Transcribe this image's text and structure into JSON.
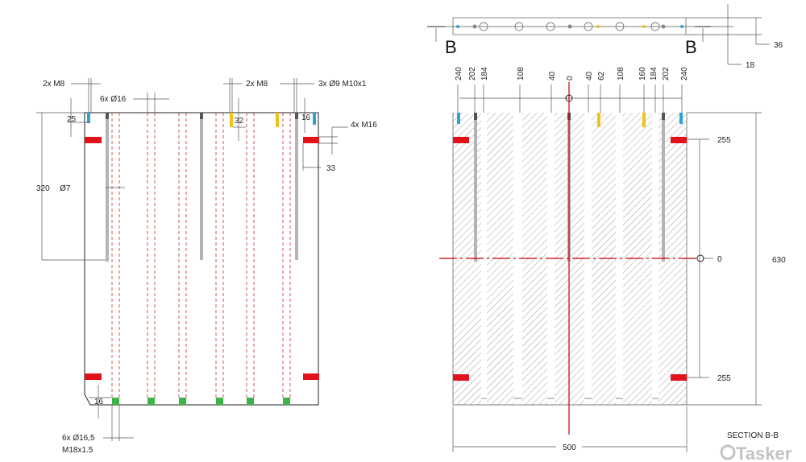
{
  "front_view": {
    "callouts": {
      "m8_left": "2x  M8",
      "bore16": "6x  Ø16",
      "m8_mid": "2x  M8",
      "m10": "3x  Ø9  M10x1",
      "m16": "4x  M16",
      "dim_25": "25",
      "dim_32": "32",
      "dim_16_top": "16",
      "dim_33": "33",
      "dim_320": "320",
      "dia7": "Ø7",
      "dim_16_bottom": "16",
      "bore165": "6x  Ø16,5",
      "thread18": "M18x1.5"
    }
  },
  "top_view": {
    "section_mark_left": "B",
    "section_mark_right": "B",
    "dim_36": "36",
    "dim_18": "18"
  },
  "section_view": {
    "top_dims": [
      "240",
      "202",
      "184",
      "108",
      "40",
      "0",
      "40",
      "62",
      "108",
      "160",
      "184",
      "202",
      "240"
    ],
    "dim_255_top": "255",
    "dim_0": "0",
    "dim_630": "630",
    "dim_255_bottom": "255",
    "dim_500": "500",
    "title": "SECTION B-B"
  },
  "watermark": "Tasker",
  "colors": {
    "red": "#e0121a",
    "blue": "#2aa3d6",
    "yellow": "#f0c21c",
    "green": "#3db34a",
    "dark": "#555555",
    "gray": "#b4b4b4"
  }
}
